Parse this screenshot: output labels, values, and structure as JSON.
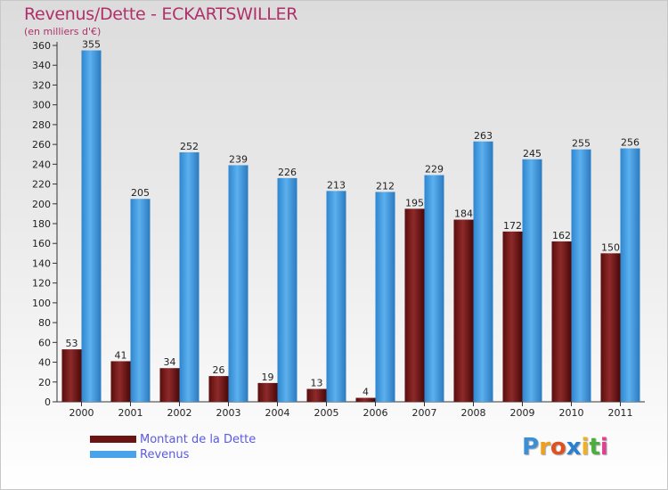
{
  "title": "Revenus/Dette - ECKARTSWILLER",
  "subtitle": "(en milliers d'€)",
  "chart_data": {
    "type": "bar",
    "categories": [
      "2000",
      "2001",
      "2002",
      "2003",
      "2004",
      "2005",
      "2006",
      "2007",
      "2008",
      "2009",
      "2010",
      "2011"
    ],
    "series": [
      {
        "name": "Montant de la Dette",
        "values": [
          53,
          41,
          34,
          26,
          19,
          13,
          4,
          195,
          184,
          172,
          162,
          150
        ],
        "color": "#7a1c1c"
      },
      {
        "name": "Revenus",
        "values": [
          355,
          205,
          252,
          239,
          226,
          213,
          212,
          229,
          263,
          245,
          255,
          256
        ],
        "color": "#4aa3e8"
      }
    ],
    "ylim": [
      0,
      360
    ],
    "yticks": [
      0,
      20,
      40,
      60,
      80,
      100,
      120,
      140,
      160,
      180,
      200,
      220,
      240,
      260,
      280,
      300,
      320,
      340,
      360
    ],
    "grid": false,
    "legend_position": "bottom-left"
  },
  "logo": {
    "letters": [
      "P",
      "r",
      "o",
      "x",
      "i",
      "t",
      "i"
    ],
    "colors": [
      "#3a8fd6",
      "#f0a020",
      "#e05020",
      "#2a7fd0",
      "#f0b020",
      "#4cae3c",
      "#e04090"
    ]
  }
}
